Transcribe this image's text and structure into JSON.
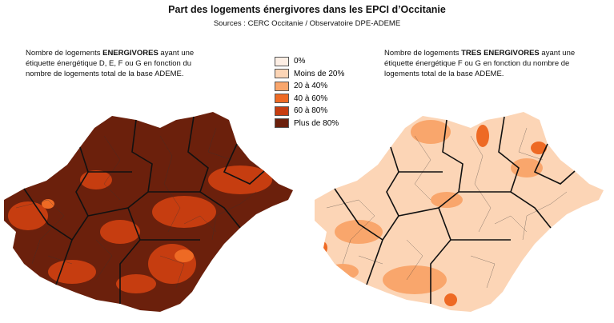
{
  "title": "Part des logements énergivores dans les EPCI d’Occitanie",
  "subtitle": "Sources : CERC Occitanie / Observatoire DPE-ADEME",
  "left_caption": {
    "before": "Nombre de logements ",
    "bold": "ENERGIVORES",
    "after": " ayant une étiquette énergétique D, E, F ou G en fonction du nombre de logements total de la base ADEME."
  },
  "right_caption": {
    "before": "Nombre de logements ",
    "bold": "TRES ENERGIVORES",
    "after": " ayant une étiquette énergétique F ou G en fonction du nombre de logements total de la base ADEME."
  },
  "legend": [
    {
      "label": "0%",
      "color": "#fdeee4"
    },
    {
      "label": "Moins de 20%",
      "color": "#fcd5b6"
    },
    {
      "label": "20 à 40%",
      "color": "#f9a66c"
    },
    {
      "label": "40 à 60%",
      "color": "#ee6a24"
    },
    {
      "label": "60 à 80%",
      "color": "#c63d10"
    },
    {
      "label": "Plus de 80%",
      "color": "#6b200c"
    }
  ]
}
